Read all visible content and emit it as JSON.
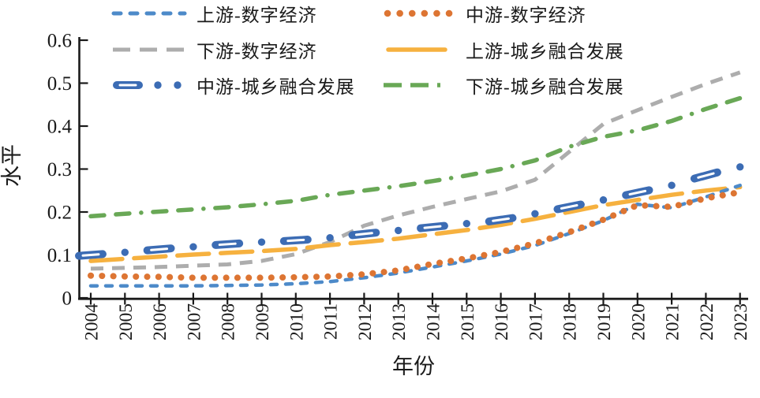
{
  "figure": {
    "background": "#ffffff",
    "axis_color": "#1a1a1a"
  },
  "chart_data": {
    "type": "line",
    "title": "",
    "xlabel": "年份",
    "ylabel": "水平",
    "grid": false,
    "legend_position": "top",
    "ylim": [
      0,
      0.6
    ],
    "ytick_labels": [
      "0",
      "0.1",
      "0.2",
      "0.3",
      "0.4",
      "0.5",
      "0.6"
    ],
    "categories": [
      "2004",
      "2005",
      "2006",
      "2007",
      "2008",
      "2009",
      "2010",
      "2011",
      "2012",
      "2013",
      "2014",
      "2015",
      "2016",
      "2017",
      "2018",
      "2019",
      "2020",
      "2021",
      "2022",
      "2023"
    ],
    "series": [
      {
        "name": "上游-数字经济",
        "color": "#4D8AC9",
        "style": "short-dash",
        "values": [
          0.028,
          0.028,
          0.028,
          0.028,
          0.029,
          0.03,
          0.033,
          0.038,
          0.047,
          0.058,
          0.072,
          0.086,
          0.102,
          0.122,
          0.15,
          0.18,
          0.218,
          0.21,
          0.235,
          0.262
        ]
      },
      {
        "name": "中游-数字经济",
        "color": "#DD7533",
        "style": "dot",
        "values": [
          0.052,
          0.05,
          0.049,
          0.047,
          0.047,
          0.047,
          0.048,
          0.05,
          0.055,
          0.064,
          0.079,
          0.092,
          0.107,
          0.127,
          0.153,
          0.182,
          0.216,
          0.212,
          0.232,
          0.246
        ]
      },
      {
        "name": "下游-数字经济",
        "color": "#ADADAD",
        "style": "dash",
        "values": [
          0.068,
          0.07,
          0.072,
          0.075,
          0.078,
          0.086,
          0.102,
          0.13,
          0.168,
          0.192,
          0.212,
          0.23,
          0.248,
          0.275,
          0.34,
          0.405,
          0.437,
          0.468,
          0.498,
          0.525
        ]
      },
      {
        "name": "上游-城乡融合发展",
        "color": "#F6B13F",
        "style": "long-dash",
        "values": [
          0.086,
          0.091,
          0.096,
          0.101,
          0.105,
          0.109,
          0.114,
          0.123,
          0.13,
          0.138,
          0.148,
          0.158,
          0.17,
          0.184,
          0.2,
          0.216,
          0.228,
          0.24,
          0.25,
          0.258
        ]
      },
      {
        "name": "中游-城乡融合发展",
        "color": "#3C6CB4",
        "style": "capsule-dot",
        "values": [
          0.1,
          0.106,
          0.113,
          0.119,
          0.125,
          0.13,
          0.134,
          0.14,
          0.149,
          0.157,
          0.165,
          0.173,
          0.182,
          0.196,
          0.212,
          0.228,
          0.245,
          0.262,
          0.285,
          0.305
        ]
      },
      {
        "name": "下游-城乡融合发展",
        "color": "#69A856",
        "style": "dash-dash-dot",
        "values": [
          0.19,
          0.196,
          0.201,
          0.206,
          0.211,
          0.218,
          0.226,
          0.24,
          0.25,
          0.26,
          0.272,
          0.285,
          0.3,
          0.32,
          0.352,
          0.375,
          0.39,
          0.412,
          0.44,
          0.465
        ]
      }
    ]
  }
}
